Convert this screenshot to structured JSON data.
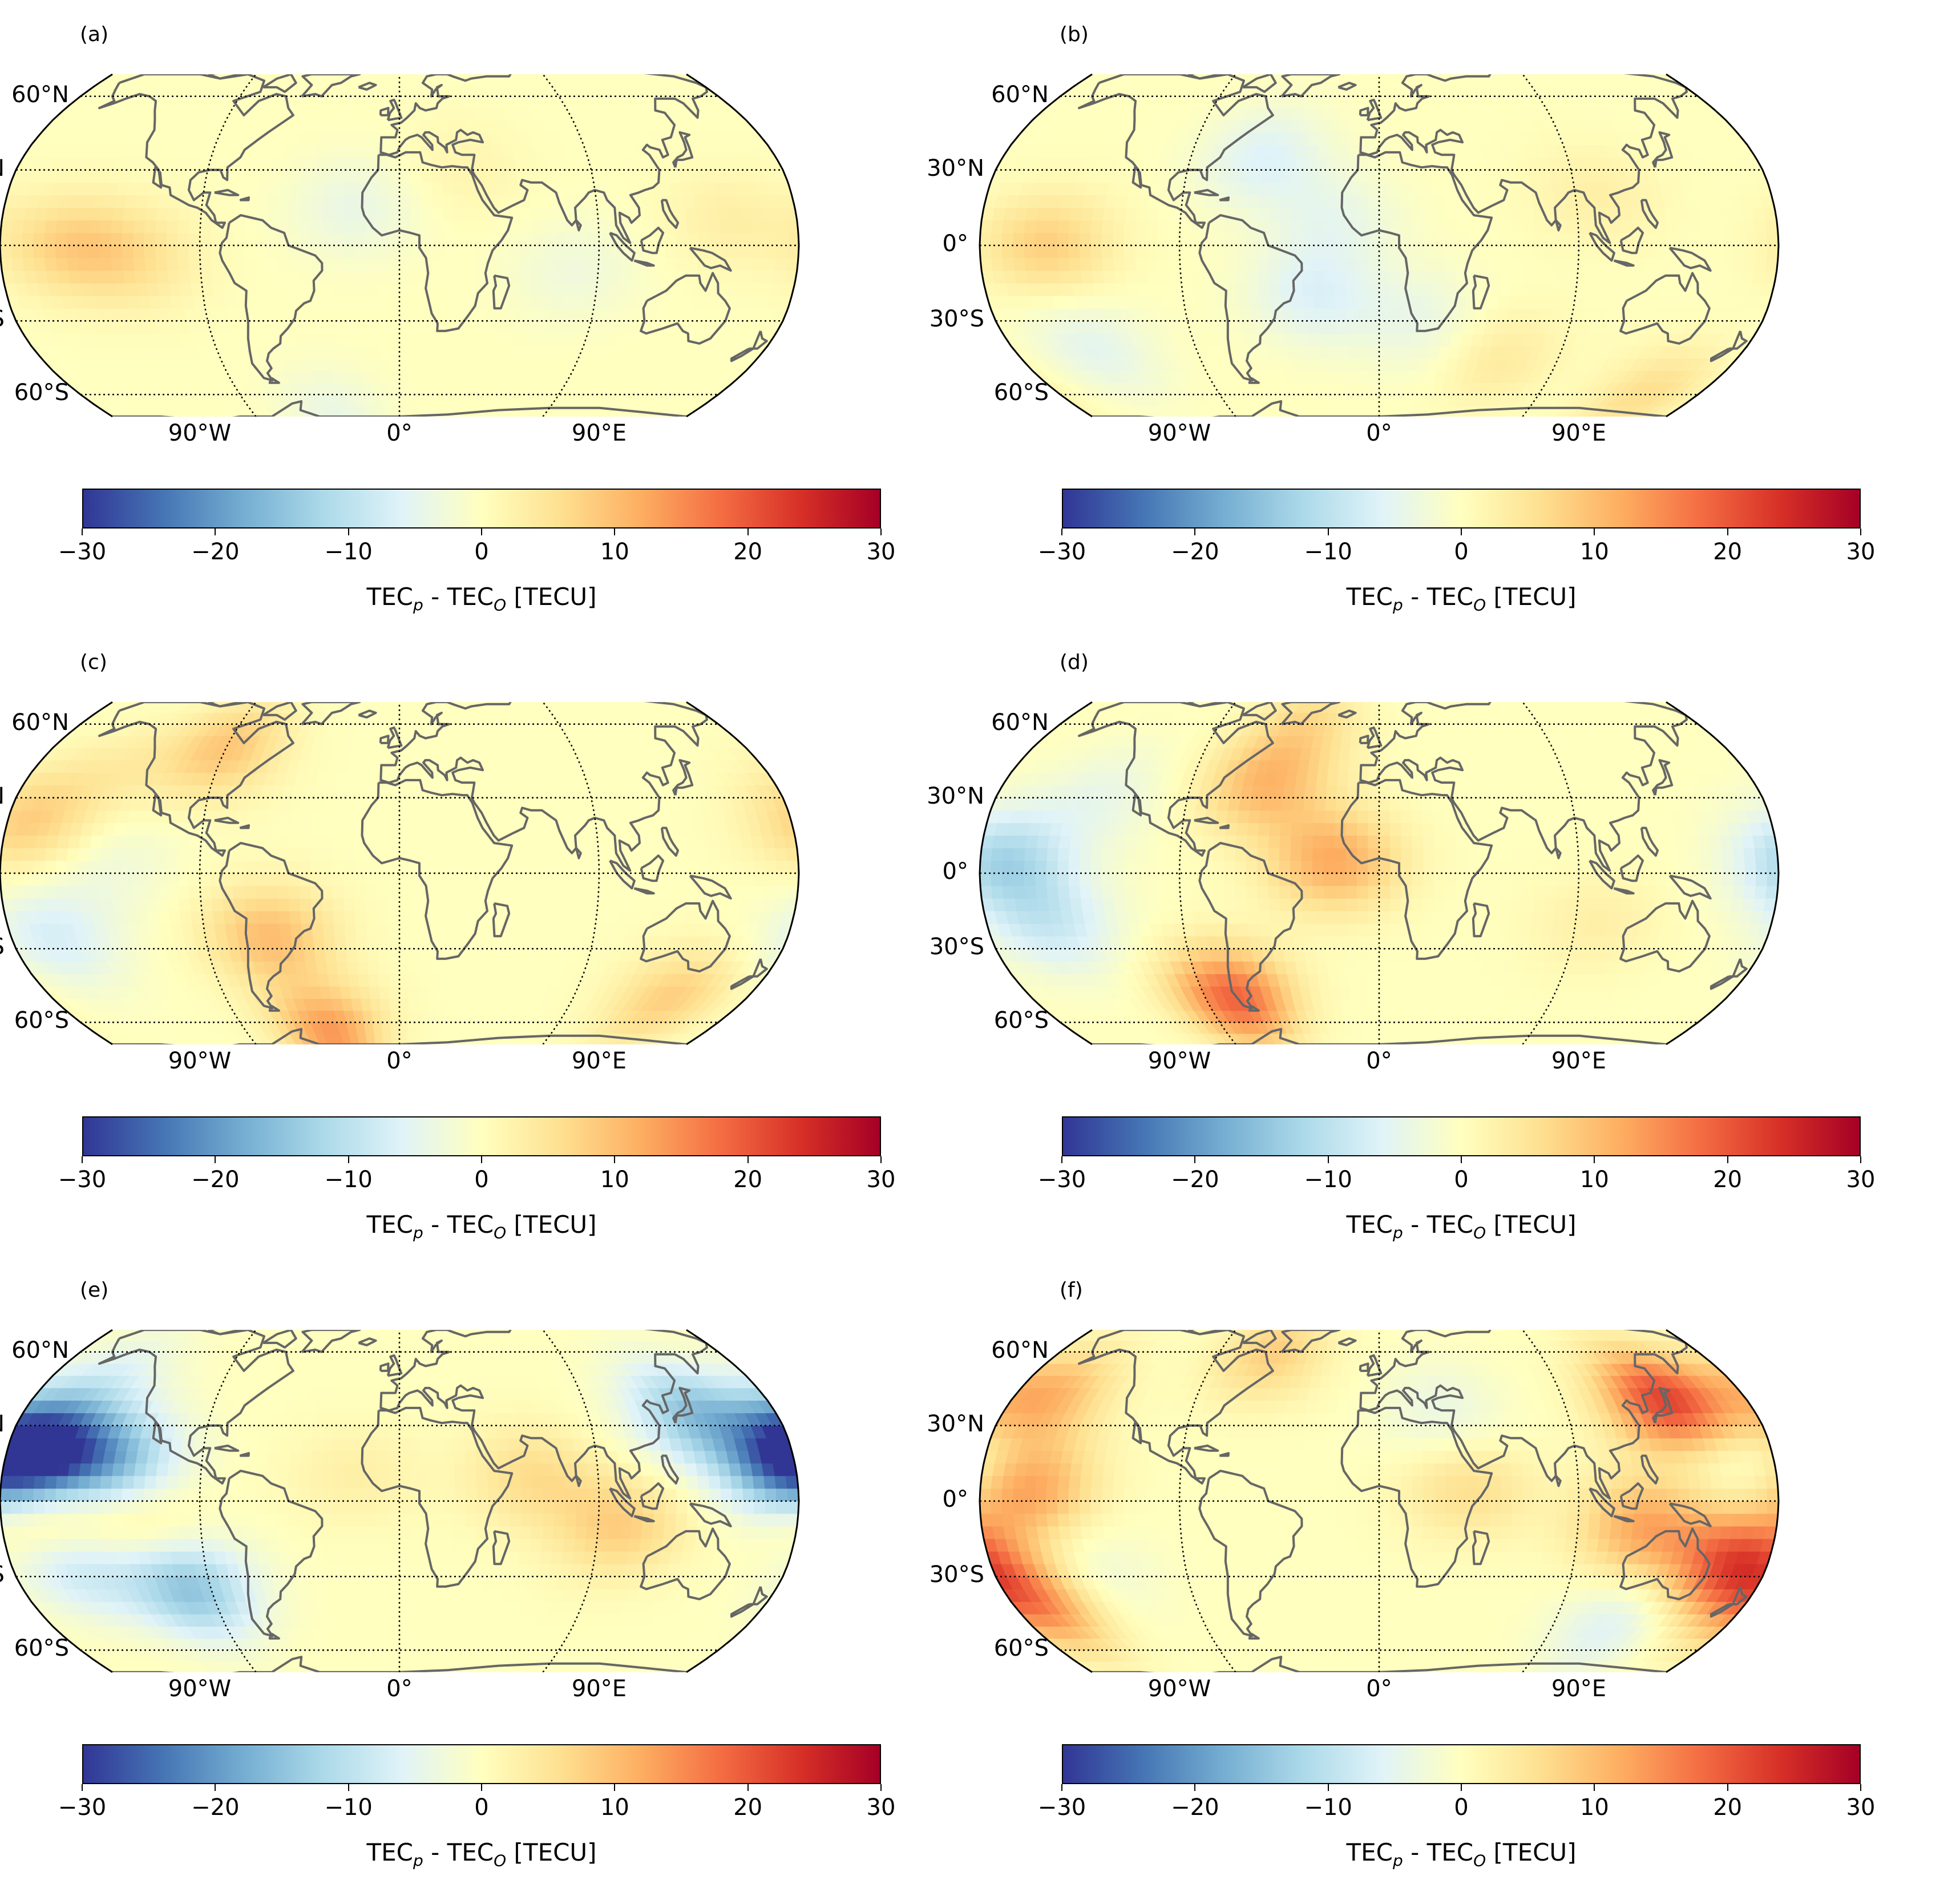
{
  "figure": {
    "colormap": "RdYlBu_r",
    "colormap_stops": [
      "#313695",
      "#4575b4",
      "#74add1",
      "#abd9e9",
      "#e0f3f8",
      "#ffffbf",
      "#fee090",
      "#fdae61",
      "#f46d43",
      "#d73027",
      "#a50026"
    ],
    "coastline_color": "#666666",
    "gridline_style": "dotted"
  },
  "chart_data": {
    "type": "heatmap",
    "projection": "Robinson",
    "value_range": [
      -30,
      30
    ],
    "colorbar_ticks": [
      "−30",
      "−20",
      "−10",
      "0",
      "10",
      "20",
      "30"
    ],
    "colorbar_label_main": "TEC",
    "colorbar_label_sub1": "p",
    "colorbar_label_sep": " - TEC",
    "colorbar_label_sub2": "O",
    "colorbar_label_unit": " [TECU]",
    "lat_labels": [
      "60°N",
      "30°N",
      "0°",
      "30°S",
      "60°S"
    ],
    "lon_labels": [
      "90°W",
      "0°",
      "90°E"
    ],
    "panels": [
      {
        "label": "(a)",
        "anomalies": [
          {
            "lon": -150,
            "lat": 0,
            "value": 7
          },
          {
            "lon": -120,
            "lat": -5,
            "value": 5
          },
          {
            "lon": -20,
            "lat": 15,
            "value": -4
          },
          {
            "lon": 80,
            "lat": -10,
            "value": -3
          },
          {
            "lon": -40,
            "lat": -70,
            "value": -4
          },
          {
            "lon": 150,
            "lat": 10,
            "value": 3
          },
          {
            "lon": 30,
            "lat": 30,
            "value": 2
          }
        ]
      },
      {
        "label": "(b)",
        "anomalies": [
          {
            "lon": -150,
            "lat": 0,
            "value": 8
          },
          {
            "lon": -55,
            "lat": 35,
            "value": -6
          },
          {
            "lon": -20,
            "lat": 10,
            "value": -4
          },
          {
            "lon": 20,
            "lat": -30,
            "value": -4
          },
          {
            "lon": -30,
            "lat": -20,
            "value": -6
          },
          {
            "lon": -140,
            "lat": -40,
            "value": -5
          },
          {
            "lon": 100,
            "lat": 20,
            "value": 3
          },
          {
            "lon": 150,
            "lat": -60,
            "value": 6
          },
          {
            "lon": 60,
            "lat": -45,
            "value": 4
          }
        ]
      },
      {
        "label": "(c)",
        "anomalies": [
          {
            "lon": -40,
            "lat": -65,
            "value": 14
          },
          {
            "lon": -60,
            "lat": -25,
            "value": 10
          },
          {
            "lon": -90,
            "lat": 50,
            "value": 9
          },
          {
            "lon": 140,
            "lat": -50,
            "value": 8
          },
          {
            "lon": -160,
            "lat": -25,
            "value": -7
          },
          {
            "lon": -170,
            "lat": 20,
            "value": 8
          },
          {
            "lon": -130,
            "lat": 5,
            "value": -3
          },
          {
            "lon": -140,
            "lat": 40,
            "value": 3
          }
        ]
      },
      {
        "label": "(d)",
        "anomalies": [
          {
            "lon": -75,
            "lat": -50,
            "value": 19
          },
          {
            "lon": -20,
            "lat": 5,
            "value": 12
          },
          {
            "lon": -55,
            "lat": 35,
            "value": 10
          },
          {
            "lon": -170,
            "lat": 5,
            "value": -12
          },
          {
            "lon": -150,
            "lat": -20,
            "value": -8
          },
          {
            "lon": -130,
            "lat": 30,
            "value": -4
          },
          {
            "lon": 100,
            "lat": -20,
            "value": 3
          },
          {
            "lon": -40,
            "lat": 60,
            "value": 6
          }
        ]
      },
      {
        "label": "(e)",
        "anomalies": [
          {
            "lon": -165,
            "lat": 20,
            "value": -28
          },
          {
            "lon": -130,
            "lat": 15,
            "value": -15
          },
          {
            "lon": -100,
            "lat": -35,
            "value": -15
          },
          {
            "lon": -150,
            "lat": -25,
            "value": -10
          },
          {
            "lon": 140,
            "lat": 35,
            "value": -14
          },
          {
            "lon": 175,
            "lat": 15,
            "value": -18
          },
          {
            "lon": -160,
            "lat": -5,
            "value": 10
          },
          {
            "lon": -120,
            "lat": -8,
            "value": 6
          },
          {
            "lon": 100,
            "lat": -10,
            "value": 8
          },
          {
            "lon": 60,
            "lat": 10,
            "value": 6
          },
          {
            "lon": -20,
            "lat": 10,
            "value": 3
          },
          {
            "lon": -150,
            "lat": 50,
            "value": -5
          }
        ]
      },
      {
        "label": "(f)",
        "anomalies": [
          {
            "lon": 140,
            "lat": 40,
            "value": 22
          },
          {
            "lon": 165,
            "lat": -25,
            "value": 20
          },
          {
            "lon": -160,
            "lat": 5,
            "value": 14
          },
          {
            "lon": -165,
            "lat": -40,
            "value": 15
          },
          {
            "lon": -165,
            "lat": 40,
            "value": 12
          },
          {
            "lon": 120,
            "lat": -10,
            "value": 12
          },
          {
            "lon": -140,
            "lat": -30,
            "value": -5
          },
          {
            "lon": 120,
            "lat": -50,
            "value": -6
          },
          {
            "lon": 30,
            "lat": 35,
            "value": -4
          },
          {
            "lon": 175,
            "lat": 15,
            "value": -6
          },
          {
            "lon": -60,
            "lat": 60,
            "value": 8
          },
          {
            "lon": 40,
            "lat": 5,
            "value": 6
          }
        ]
      }
    ]
  }
}
